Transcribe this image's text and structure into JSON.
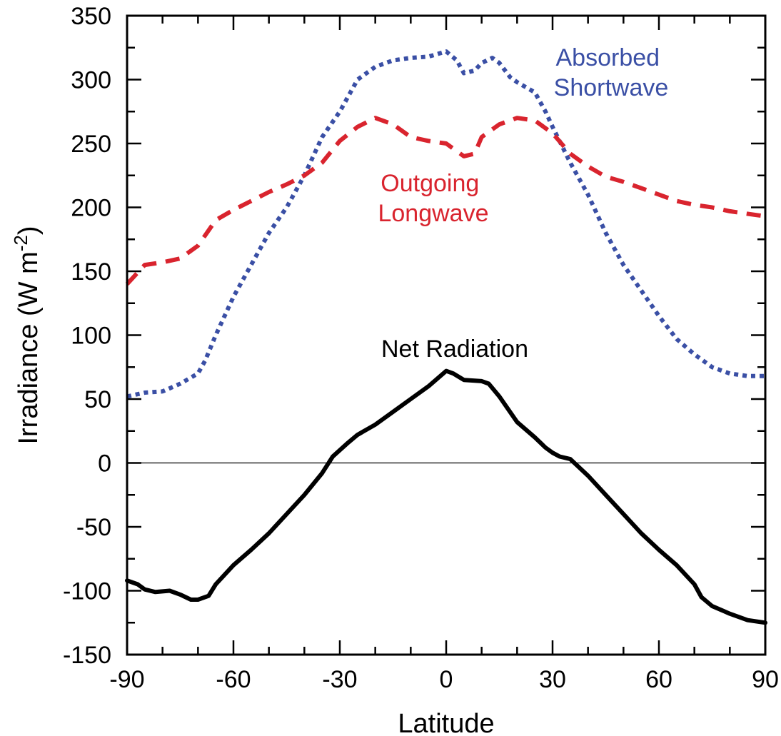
{
  "chart_data": {
    "type": "line",
    "xlabel": "Latitude",
    "ylabel": "Irradiance (W m",
    "ylabel_sup": "-2",
    "ylabel_close": ")",
    "xlim": [
      -90,
      90
    ],
    "ylim": [
      -150,
      350
    ],
    "x_ticks": [
      -90,
      -60,
      -30,
      0,
      30,
      60,
      90
    ],
    "y_ticks": [
      -150,
      -100,
      -50,
      0,
      50,
      100,
      150,
      200,
      250,
      300,
      350
    ],
    "x_tick_labels": [
      "-90",
      "-60",
      "-30",
      "0",
      "30",
      "60",
      "90"
    ],
    "y_tick_labels": [
      "-150",
      "-100",
      "-50",
      "0",
      "50",
      "100",
      "150",
      "200",
      "250",
      "300",
      "350"
    ],
    "zero_line": true,
    "series": [
      {
        "name": "Absorbed Shortwave",
        "label_lines": [
          "Absorbed",
          "Shortwave"
        ],
        "color": "#3a4fa5",
        "style": "dotted",
        "points": [
          [
            -90,
            52
          ],
          [
            -85,
            55
          ],
          [
            -80,
            56
          ],
          [
            -75,
            62
          ],
          [
            -70,
            70
          ],
          [
            -68,
            80
          ],
          [
            -65,
            100
          ],
          [
            -60,
            130
          ],
          [
            -55,
            155
          ],
          [
            -50,
            180
          ],
          [
            -45,
            200
          ],
          [
            -40,
            225
          ],
          [
            -35,
            255
          ],
          [
            -30,
            275
          ],
          [
            -25,
            300
          ],
          [
            -20,
            310
          ],
          [
            -15,
            315
          ],
          [
            -10,
            317
          ],
          [
            -5,
            318
          ],
          [
            0,
            322
          ],
          [
            3,
            315
          ],
          [
            5,
            305
          ],
          [
            8,
            307
          ],
          [
            10,
            313
          ],
          [
            13,
            317
          ],
          [
            15,
            313
          ],
          [
            18,
            302
          ],
          [
            20,
            298
          ],
          [
            25,
            290
          ],
          [
            28,
            275
          ],
          [
            30,
            263
          ],
          [
            35,
            235
          ],
          [
            40,
            210
          ],
          [
            45,
            180
          ],
          [
            50,
            155
          ],
          [
            55,
            135
          ],
          [
            60,
            115
          ],
          [
            65,
            97
          ],
          [
            70,
            85
          ],
          [
            75,
            75
          ],
          [
            80,
            70
          ],
          [
            85,
            68
          ],
          [
            90,
            68
          ]
        ]
      },
      {
        "name": "Outgoing Longwave",
        "label_lines": [
          "Outgoing",
          "Longwave"
        ],
        "color": "#d9242e",
        "style": "dashed",
        "points": [
          [
            -90,
            140
          ],
          [
            -85,
            155
          ],
          [
            -80,
            157
          ],
          [
            -75,
            160
          ],
          [
            -70,
            170
          ],
          [
            -65,
            190
          ],
          [
            -60,
            198
          ],
          [
            -55,
            205
          ],
          [
            -50,
            212
          ],
          [
            -45,
            218
          ],
          [
            -40,
            225
          ],
          [
            -35,
            235
          ],
          [
            -30,
            252
          ],
          [
            -25,
            263
          ],
          [
            -20,
            270
          ],
          [
            -15,
            265
          ],
          [
            -10,
            255
          ],
          [
            -5,
            252
          ],
          [
            0,
            250
          ],
          [
            5,
            240
          ],
          [
            8,
            242
          ],
          [
            10,
            255
          ],
          [
            15,
            265
          ],
          [
            20,
            270
          ],
          [
            25,
            268
          ],
          [
            30,
            258
          ],
          [
            35,
            242
          ],
          [
            40,
            232
          ],
          [
            45,
            224
          ],
          [
            50,
            220
          ],
          [
            55,
            215
          ],
          [
            60,
            210
          ],
          [
            65,
            205
          ],
          [
            70,
            202
          ],
          [
            75,
            200
          ],
          [
            80,
            197
          ],
          [
            85,
            195
          ],
          [
            90,
            193
          ]
        ]
      },
      {
        "name": "Net Radiation",
        "label_lines": [
          "Net Radiation"
        ],
        "color": "#000000",
        "style": "solid",
        "points": [
          [
            -90,
            -92
          ],
          [
            -87,
            -95
          ],
          [
            -85,
            -99
          ],
          [
            -82,
            -101
          ],
          [
            -78,
            -100
          ],
          [
            -75,
            -103
          ],
          [
            -72,
            -107
          ],
          [
            -70,
            -107
          ],
          [
            -67,
            -104
          ],
          [
            -65,
            -95
          ],
          [
            -60,
            -80
          ],
          [
            -55,
            -68
          ],
          [
            -50,
            -55
          ],
          [
            -45,
            -40
          ],
          [
            -40,
            -25
          ],
          [
            -35,
            -8
          ],
          [
            -32,
            5
          ],
          [
            -28,
            15
          ],
          [
            -25,
            22
          ],
          [
            -20,
            30
          ],
          [
            -15,
            40
          ],
          [
            -10,
            50
          ],
          [
            -5,
            60
          ],
          [
            0,
            72
          ],
          [
            2,
            70
          ],
          [
            5,
            65
          ],
          [
            10,
            64
          ],
          [
            12,
            62
          ],
          [
            15,
            52
          ],
          [
            18,
            40
          ],
          [
            20,
            32
          ],
          [
            25,
            20
          ],
          [
            28,
            12
          ],
          [
            30,
            8
          ],
          [
            32,
            5
          ],
          [
            35,
            3
          ],
          [
            40,
            -10
          ],
          [
            45,
            -25
          ],
          [
            50,
            -40
          ],
          [
            55,
            -55
          ],
          [
            60,
            -68
          ],
          [
            65,
            -80
          ],
          [
            70,
            -95
          ],
          [
            72,
            -105
          ],
          [
            75,
            -112
          ],
          [
            80,
            -118
          ],
          [
            85,
            -123
          ],
          [
            90,
            -125
          ]
        ]
      }
    ]
  }
}
